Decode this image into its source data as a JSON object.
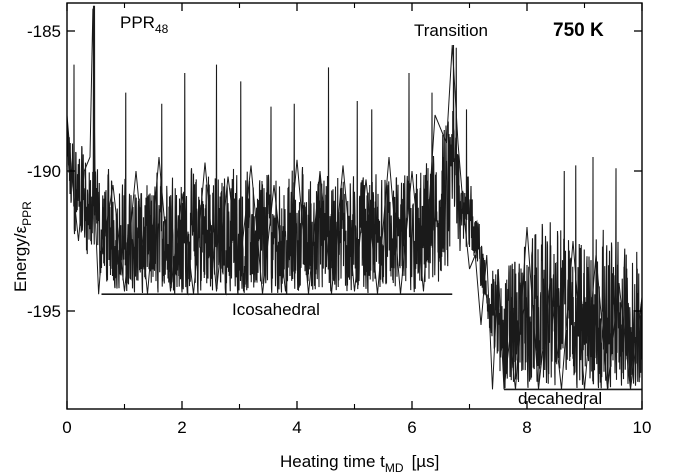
{
  "chart_data": {
    "type": "line",
    "title_label": "PPR",
    "title_sub": "48",
    "temperature_label": "750 K",
    "xlabel_main": "Heating time t",
    "xlabel_sub": "MD",
    "xlabel_unit": "[µs]",
    "ylabel_main": "Energy/ε",
    "ylabel_sub": "PPR",
    "xlim": [
      0,
      10
    ],
    "ylim": [
      -198.5,
      -184
    ],
    "x_ticks": [
      0,
      2,
      4,
      6,
      8,
      10
    ],
    "x_tick_labels": [
      "0",
      "2",
      "4",
      "6",
      "8",
      "10"
    ],
    "y_ticks": [
      -185,
      -190,
      -195
    ],
    "y_tick_labels": [
      "-185",
      "-190",
      "-195"
    ],
    "annotations": [
      {
        "text": "Transition",
        "x": 6.7,
        "y": -185.2
      },
      {
        "text": "Icosahedral",
        "x": 3.8,
        "y": -195.2
      },
      {
        "text": "decahedral",
        "x": 8.95,
        "y": -197.3
      }
    ],
    "series": [
      {
        "x": [
          0.0,
          0.1,
          0.2,
          0.3,
          0.4,
          0.45,
          0.5,
          0.55,
          0.6,
          0.8,
          1.0,
          1.2,
          1.4,
          1.6,
          1.8,
          2.0,
          2.2,
          2.4,
          2.6,
          2.8,
          3.0,
          3.2,
          3.4,
          3.6,
          3.8,
          4.0,
          4.2,
          4.4,
          4.6,
          4.8,
          5.0,
          5.2,
          5.4,
          5.6,
          5.8,
          6.0,
          6.2,
          6.4,
          6.6,
          6.7,
          6.8,
          6.9,
          7.0,
          7.1,
          7.2,
          7.3,
          7.4,
          7.5,
          7.6,
          7.7,
          7.8,
          8.0,
          8.2,
          8.4,
          8.6,
          8.8,
          9.0,
          9.2,
          9.4,
          9.6,
          9.8,
          10.0
        ],
        "y": [
          -188.0,
          -190.5,
          -192.5,
          -190.0,
          -189.5,
          -184.2,
          -192.0,
          -194.4,
          -193.0,
          -190.5,
          -194.3,
          -190.0,
          -194.4,
          -189.5,
          -194.3,
          -190.8,
          -194.4,
          -189.7,
          -194.3,
          -190.2,
          -193.5,
          -189.8,
          -194.4,
          -190.5,
          -194.3,
          -189.6,
          -194.4,
          -190.0,
          -194.4,
          -189.8,
          -194.3,
          -190.3,
          -194.4,
          -189.5,
          -194.4,
          -190.0,
          -194.3,
          -188.0,
          -189.0,
          -185.5,
          -189.0,
          -191.5,
          -193.5,
          -193.0,
          -195.5,
          -193.0,
          -197.8,
          -193.5,
          -197.8,
          -196.0,
          -197.8,
          -192.0,
          -197.8,
          -194.0,
          -197.8,
          -192.5,
          -197.8,
          -193.0,
          -197.8,
          -194.0,
          -197.8,
          -194.5
        ]
      }
    ],
    "trace_density": 2300,
    "envelope": {
      "x": [
        0.0,
        0.15,
        0.5,
        1.0,
        2.0,
        3.0,
        4.0,
        5.0,
        6.0,
        6.5,
        6.7,
        6.9,
        7.1,
        7.2,
        7.3,
        7.5,
        7.7,
        8.0,
        8.5,
        9.0,
        9.5,
        10.0
      ],
      "upper": [
        -187.8,
        -188.5,
        -189.5,
        -190.0,
        -189.6,
        -189.4,
        -189.6,
        -189.5,
        -189.6,
        -188.5,
        -187.0,
        -188.8,
        -190.5,
        -192.0,
        -193.0,
        -193.0,
        -192.5,
        -191.5,
        -191.2,
        -191.5,
        -192.0,
        -192.3
      ],
      "lower": [
        -191.5,
        -192.8,
        -193.8,
        -194.4,
        -194.4,
        -194.4,
        -194.4,
        -194.4,
        -194.4,
        -194.4,
        -193.0,
        -193.2,
        -193.8,
        -194.5,
        -195.5,
        -197.8,
        -197.8,
        -197.8,
        -197.8,
        -197.8,
        -197.8,
        -197.8
      ]
    },
    "spikes": [
      {
        "x": 0.12,
        "y": -186.2
      },
      {
        "x": 0.46,
        "y": -184.1
      },
      {
        "x": 0.48,
        "y": -184.1
      },
      {
        "x": 1.02,
        "y": -187.2
      },
      {
        "x": 1.65,
        "y": -187.6
      },
      {
        "x": 2.05,
        "y": -186.5
      },
      {
        "x": 2.6,
        "y": -186.2
      },
      {
        "x": 3.02,
        "y": -186.8
      },
      {
        "x": 3.55,
        "y": -187.7
      },
      {
        "x": 3.95,
        "y": -187.6
      },
      {
        "x": 4.55,
        "y": -186.3
      },
      {
        "x": 5.05,
        "y": -187.5
      },
      {
        "x": 5.3,
        "y": -187.8
      },
      {
        "x": 5.95,
        "y": -186.5
      },
      {
        "x": 6.35,
        "y": -187.2
      },
      {
        "x": 6.72,
        "y": -185.5
      },
      {
        "x": 6.77,
        "y": -185.6
      },
      {
        "x": 6.95,
        "y": -187.8
      },
      {
        "x": 8.65,
        "y": -190.0
      },
      {
        "x": 8.85,
        "y": -189.8
      },
      {
        "x": 9.15,
        "y": -189.5
      },
      {
        "x": 9.55,
        "y": -189.9
      }
    ],
    "grid": false,
    "line_color": "#1a1a1a"
  }
}
